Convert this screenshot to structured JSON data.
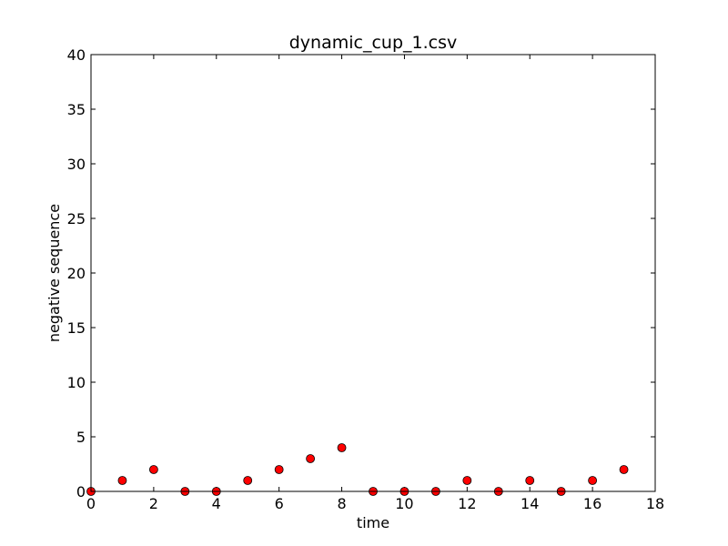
{
  "chart_data": {
    "type": "scatter",
    "title": "dynamic_cup_1.csv",
    "xlabel": "time",
    "ylabel": "negative sequence",
    "xlim": [
      0,
      18
    ],
    "ylim": [
      0,
      40
    ],
    "x_ticks": [
      0,
      2,
      4,
      6,
      8,
      10,
      12,
      14,
      16,
      18
    ],
    "y_ticks": [
      0,
      5,
      10,
      15,
      20,
      25,
      30,
      35,
      40
    ],
    "grid": false,
    "marker_color": "#ff0000",
    "marker_edge_color": "#000000",
    "points": [
      {
        "x": 0,
        "y": 0
      },
      {
        "x": 1,
        "y": 1
      },
      {
        "x": 2,
        "y": 2
      },
      {
        "x": 3,
        "y": 0
      },
      {
        "x": 4,
        "y": 0
      },
      {
        "x": 5,
        "y": 1
      },
      {
        "x": 6,
        "y": 2
      },
      {
        "x": 7,
        "y": 3
      },
      {
        "x": 8,
        "y": 4
      },
      {
        "x": 9,
        "y": 0
      },
      {
        "x": 10,
        "y": 0
      },
      {
        "x": 11,
        "y": 0
      },
      {
        "x": 12,
        "y": 1
      },
      {
        "x": 13,
        "y": 0
      },
      {
        "x": 14,
        "y": 1
      },
      {
        "x": 15,
        "y": 0
      },
      {
        "x": 16,
        "y": 1
      },
      {
        "x": 17,
        "y": 2
      }
    ]
  }
}
